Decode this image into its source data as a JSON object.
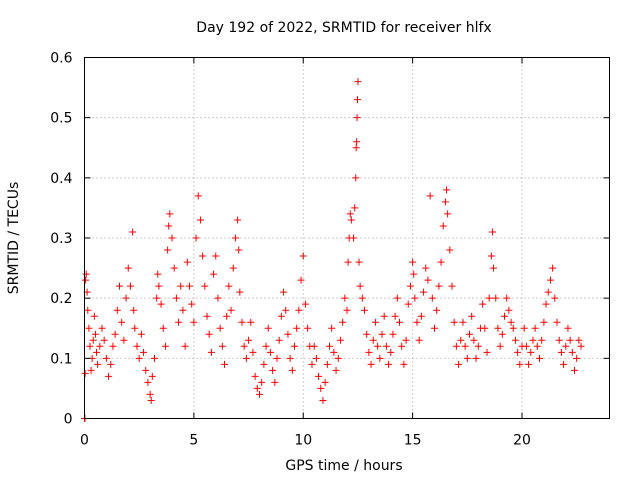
{
  "chart_data": {
    "type": "scatter",
    "title": "Day 192 of 2022, SRMTID for receiver hlfx",
    "xlabel": "GPS time / hours",
    "ylabel": "SRMTID / TECUs",
    "xlim": [
      0,
      24
    ],
    "ylim": [
      0,
      0.6
    ],
    "xticks": [
      0,
      5,
      10,
      15,
      20
    ],
    "xtick_labels": [
      "0",
      "5",
      "10",
      "15",
      "20"
    ],
    "yticks": [
      0,
      0.1,
      0.2,
      0.3,
      0.4,
      0.5,
      0.6
    ],
    "ytick_labels": [
      "0",
      "0.1",
      "0.2",
      "0.3",
      "0.4",
      "0.5",
      "0.6"
    ],
    "grid": true,
    "marker": "+",
    "color": "#ff0000",
    "series": [
      {
        "name": "SRMTID",
        "points": [
          [
            0.0,
            0.0
          ],
          [
            0.02,
            0.0
          ],
          [
            0.03,
            0.075
          ],
          [
            0.05,
            0.23
          ],
          [
            0.08,
            0.24
          ],
          [
            0.12,
            0.21
          ],
          [
            0.15,
            0.18
          ],
          [
            0.2,
            0.15
          ],
          [
            0.25,
            0.12
          ],
          [
            0.3,
            0.08
          ],
          [
            0.35,
            0.1
          ],
          [
            0.4,
            0.13
          ],
          [
            0.45,
            0.17
          ],
          [
            0.5,
            0.14
          ],
          [
            0.55,
            0.11
          ],
          [
            0.6,
            0.09
          ],
          [
            0.7,
            0.12
          ],
          [
            0.8,
            0.15
          ],
          [
            0.9,
            0.13
          ],
          [
            1.0,
            0.1
          ],
          [
            1.1,
            0.07
          ],
          [
            1.2,
            0.09
          ],
          [
            1.3,
            0.12
          ],
          [
            1.4,
            0.14
          ],
          [
            1.5,
            0.18
          ],
          [
            1.6,
            0.22
          ],
          [
            1.7,
            0.16
          ],
          [
            1.8,
            0.13
          ],
          [
            1.9,
            0.2
          ],
          [
            2.0,
            0.25
          ],
          [
            2.1,
            0.22
          ],
          [
            2.2,
            0.31
          ],
          [
            2.25,
            0.18
          ],
          [
            2.3,
            0.15
          ],
          [
            2.4,
            0.12
          ],
          [
            2.5,
            0.1
          ],
          [
            2.6,
            0.14
          ],
          [
            2.7,
            0.11
          ],
          [
            2.8,
            0.08
          ],
          [
            2.9,
            0.06
          ],
          [
            3.0,
            0.04
          ],
          [
            3.05,
            0.03
          ],
          [
            3.1,
            0.07
          ],
          [
            3.2,
            0.1
          ],
          [
            3.3,
            0.2
          ],
          [
            3.35,
            0.24
          ],
          [
            3.4,
            0.22
          ],
          [
            3.5,
            0.19
          ],
          [
            3.6,
            0.15
          ],
          [
            3.7,
            0.12
          ],
          [
            3.8,
            0.28
          ],
          [
            3.85,
            0.32
          ],
          [
            3.9,
            0.34
          ],
          [
            4.0,
            0.3
          ],
          [
            4.1,
            0.25
          ],
          [
            4.2,
            0.2
          ],
          [
            4.3,
            0.16
          ],
          [
            4.4,
            0.22
          ],
          [
            4.5,
            0.18
          ],
          [
            4.6,
            0.12
          ],
          [
            4.7,
            0.26
          ],
          [
            4.8,
            0.22
          ],
          [
            4.9,
            0.19
          ],
          [
            5.0,
            0.16
          ],
          [
            5.1,
            0.3
          ],
          [
            5.2,
            0.37
          ],
          [
            5.3,
            0.33
          ],
          [
            5.4,
            0.27
          ],
          [
            5.5,
            0.22
          ],
          [
            5.6,
            0.17
          ],
          [
            5.7,
            0.14
          ],
          [
            5.8,
            0.11
          ],
          [
            5.9,
            0.24
          ],
          [
            6.0,
            0.27
          ],
          [
            6.1,
            0.2
          ],
          [
            6.2,
            0.15
          ],
          [
            6.3,
            0.12
          ],
          [
            6.4,
            0.09
          ],
          [
            6.5,
            0.17
          ],
          [
            6.6,
            0.22
          ],
          [
            6.7,
            0.18
          ],
          [
            6.8,
            0.25
          ],
          [
            6.9,
            0.3
          ],
          [
            7.0,
            0.33
          ],
          [
            7.05,
            0.28
          ],
          [
            7.1,
            0.21
          ],
          [
            7.2,
            0.16
          ],
          [
            7.3,
            0.12
          ],
          [
            7.4,
            0.1
          ],
          [
            7.5,
            0.13
          ],
          [
            7.6,
            0.16
          ],
          [
            7.7,
            0.11
          ],
          [
            7.8,
            0.07
          ],
          [
            7.9,
            0.05
          ],
          [
            8.0,
            0.04
          ],
          [
            8.1,
            0.06
          ],
          [
            8.2,
            0.09
          ],
          [
            8.3,
            0.12
          ],
          [
            8.4,
            0.15
          ],
          [
            8.5,
            0.11
          ],
          [
            8.6,
            0.08
          ],
          [
            8.7,
            0.06
          ],
          [
            8.8,
            0.1
          ],
          [
            8.9,
            0.13
          ],
          [
            9.0,
            0.17
          ],
          [
            9.1,
            0.21
          ],
          [
            9.2,
            0.18
          ],
          [
            9.3,
            0.14
          ],
          [
            9.4,
            0.1
          ],
          [
            9.5,
            0.08
          ],
          [
            9.6,
            0.12
          ],
          [
            9.7,
            0.15
          ],
          [
            9.8,
            0.18
          ],
          [
            9.9,
            0.23
          ],
          [
            10.0,
            0.27
          ],
          [
            10.1,
            0.19
          ],
          [
            10.2,
            0.15
          ],
          [
            10.3,
            0.12
          ],
          [
            10.4,
            0.09
          ],
          [
            10.5,
            0.12
          ],
          [
            10.6,
            0.1
          ],
          [
            10.7,
            0.07
          ],
          [
            10.8,
            0.05
          ],
          [
            10.9,
            0.03
          ],
          [
            11.0,
            0.06
          ],
          [
            11.1,
            0.09
          ],
          [
            11.2,
            0.12
          ],
          [
            11.3,
            0.15
          ],
          [
            11.4,
            0.11
          ],
          [
            11.5,
            0.08
          ],
          [
            11.6,
            0.1
          ],
          [
            11.7,
            0.13
          ],
          [
            11.8,
            0.16
          ],
          [
            11.9,
            0.2
          ],
          [
            12.0,
            0.18
          ],
          [
            12.05,
            0.26
          ],
          [
            12.1,
            0.3
          ],
          [
            12.15,
            0.34
          ],
          [
            12.2,
            0.33
          ],
          [
            12.3,
            0.3
          ],
          [
            12.35,
            0.35
          ],
          [
            12.4,
            0.4
          ],
          [
            12.42,
            0.45
          ],
          [
            12.44,
            0.46
          ],
          [
            12.46,
            0.5
          ],
          [
            12.48,
            0.53
          ],
          [
            12.5,
            0.56
          ],
          [
            12.55,
            0.26
          ],
          [
            12.6,
            0.22
          ],
          [
            12.7,
            0.2
          ],
          [
            12.8,
            0.18
          ],
          [
            12.9,
            0.14
          ],
          [
            13.0,
            0.11
          ],
          [
            13.1,
            0.09
          ],
          [
            13.2,
            0.13
          ],
          [
            13.3,
            0.16
          ],
          [
            13.4,
            0.12
          ],
          [
            13.5,
            0.1
          ],
          [
            13.6,
            0.14
          ],
          [
            13.7,
            0.17
          ],
          [
            13.8,
            0.12
          ],
          [
            13.9,
            0.09
          ],
          [
            14.0,
            0.11
          ],
          [
            14.1,
            0.14
          ],
          [
            14.2,
            0.17
          ],
          [
            14.3,
            0.2
          ],
          [
            14.4,
            0.16
          ],
          [
            14.5,
            0.12
          ],
          [
            14.6,
            0.09
          ],
          [
            14.7,
            0.13
          ],
          [
            14.8,
            0.19
          ],
          [
            14.9,
            0.22
          ],
          [
            15.0,
            0.26
          ],
          [
            15.05,
            0.24
          ],
          [
            15.1,
            0.2
          ],
          [
            15.2,
            0.16
          ],
          [
            15.3,
            0.13
          ],
          [
            15.4,
            0.17
          ],
          [
            15.5,
            0.21
          ],
          [
            15.6,
            0.25
          ],
          [
            15.7,
            0.23
          ],
          [
            15.8,
            0.37
          ],
          [
            15.9,
            0.2
          ],
          [
            16.0,
            0.15
          ],
          [
            16.1,
            0.18
          ],
          [
            16.2,
            0.22
          ],
          [
            16.3,
            0.26
          ],
          [
            16.4,
            0.32
          ],
          [
            16.5,
            0.36
          ],
          [
            16.55,
            0.38
          ],
          [
            16.6,
            0.34
          ],
          [
            16.7,
            0.28
          ],
          [
            16.8,
            0.22
          ],
          [
            16.9,
            0.16
          ],
          [
            17.0,
            0.12
          ],
          [
            17.1,
            0.09
          ],
          [
            17.2,
            0.13
          ],
          [
            17.3,
            0.16
          ],
          [
            17.4,
            0.12
          ],
          [
            17.5,
            0.1
          ],
          [
            17.6,
            0.14
          ],
          [
            17.7,
            0.17
          ],
          [
            17.8,
            0.13
          ],
          [
            17.9,
            0.1
          ],
          [
            18.0,
            0.12
          ],
          [
            18.1,
            0.15
          ],
          [
            18.2,
            0.19
          ],
          [
            18.3,
            0.15
          ],
          [
            18.4,
            0.11
          ],
          [
            18.5,
            0.2
          ],
          [
            18.6,
            0.27
          ],
          [
            18.65,
            0.31
          ],
          [
            18.7,
            0.25
          ],
          [
            18.8,
            0.2
          ],
          [
            18.9,
            0.15
          ],
          [
            19.0,
            0.12
          ],
          [
            19.1,
            0.14
          ],
          [
            19.2,
            0.17
          ],
          [
            19.3,
            0.2
          ],
          [
            19.4,
            0.18
          ],
          [
            19.5,
            0.16
          ],
          [
            19.6,
            0.15
          ],
          [
            19.7,
            0.13
          ],
          [
            19.8,
            0.11
          ],
          [
            19.9,
            0.09
          ],
          [
            20.0,
            0.12
          ],
          [
            20.1,
            0.15
          ],
          [
            20.2,
            0.12
          ],
          [
            20.3,
            0.09
          ],
          [
            20.4,
            0.11
          ],
          [
            20.5,
            0.13
          ],
          [
            20.6,
            0.15
          ],
          [
            20.7,
            0.12
          ],
          [
            20.8,
            0.1
          ],
          [
            20.9,
            0.13
          ],
          [
            21.0,
            0.16
          ],
          [
            21.1,
            0.19
          ],
          [
            21.2,
            0.21
          ],
          [
            21.3,
            0.23
          ],
          [
            21.4,
            0.25
          ],
          [
            21.5,
            0.2
          ],
          [
            21.6,
            0.16
          ],
          [
            21.7,
            0.13
          ],
          [
            21.8,
            0.11
          ],
          [
            21.9,
            0.09
          ],
          [
            22.0,
            0.12
          ],
          [
            22.1,
            0.15
          ],
          [
            22.2,
            0.13
          ],
          [
            22.3,
            0.11
          ],
          [
            22.4,
            0.08
          ],
          [
            22.5,
            0.1
          ],
          [
            22.6,
            0.13
          ],
          [
            22.7,
            0.12
          ]
        ]
      }
    ]
  }
}
